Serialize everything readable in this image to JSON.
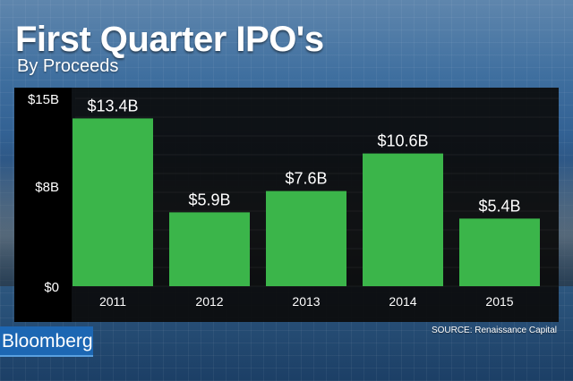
{
  "header": {
    "title": "First Quarter IPO's",
    "subtitle": "By Proceeds"
  },
  "chart_data": {
    "type": "bar",
    "title": "First Quarter IPO's",
    "subtitle": "By Proceeds",
    "categories": [
      "2011",
      "2012",
      "2013",
      "2014",
      "2015"
    ],
    "values": [
      13.4,
      5.9,
      7.6,
      10.6,
      5.4
    ],
    "data_labels": [
      "$13.4B",
      "$5.9B",
      "$7.6B",
      "$10.6B",
      "$5.4B"
    ],
    "unit": "billion USD",
    "ylim": [
      0,
      15
    ],
    "yticks": [
      0,
      8,
      15
    ],
    "ytick_labels": [
      "$0",
      "$8B",
      "$15B"
    ],
    "xlabel": "",
    "ylabel": "",
    "grid": true,
    "bar_color": "#3bb54a"
  },
  "footer": {
    "brand": "Bloomberg",
    "source": "SOURCE: Renaissance Capital"
  },
  "colors": {
    "panel": "#0b0b0b",
    "bar": "#3bb54a",
    "brand": "#1d67b3"
  }
}
